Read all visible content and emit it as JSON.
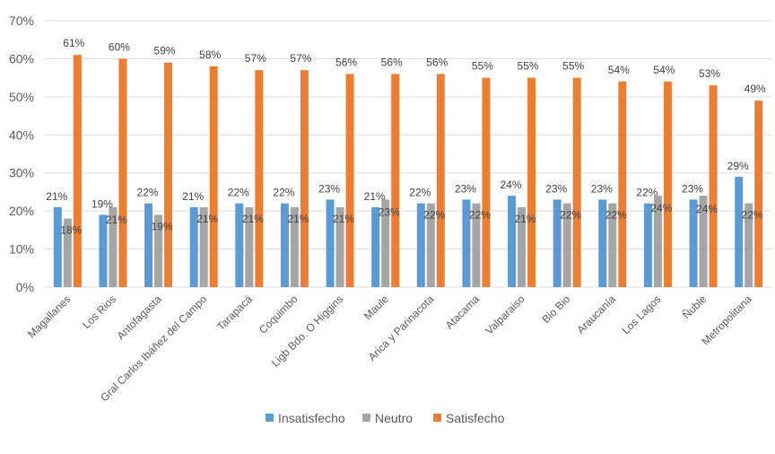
{
  "chart_data": {
    "type": "bar",
    "categories": [
      "Magallanes",
      "Los Rios",
      "Antofagasta",
      "Gral Carlos Ibáñez del Campo",
      "Tarapacá",
      "Coquimbo",
      "Ligb Bdo. O Higgins",
      "Maule",
      "Arica y Parinacota",
      "Atacama",
      "Valparaiso",
      "Bio Bio",
      "Araucanía",
      "Los Lagos",
      "Ñuble",
      "Metropolitana"
    ],
    "series": [
      {
        "name": "Insatisfecho",
        "color": "#5B9BD5",
        "values": [
          21,
          19,
          22,
          21,
          22,
          22,
          23,
          21,
          22,
          23,
          24,
          23,
          23,
          22,
          23,
          29
        ]
      },
      {
        "name": "Neutro",
        "color": "#A5A5A5",
        "values": [
          18,
          21,
          19,
          21,
          21,
          21,
          21,
          23,
          22,
          22,
          21,
          22,
          22,
          24,
          24,
          22
        ]
      },
      {
        "name": "Satisfecho",
        "color": "#ED7D31",
        "values": [
          61,
          60,
          59,
          58,
          57,
          57,
          56,
          56,
          56,
          55,
          55,
          55,
          54,
          54,
          53,
          49
        ]
      }
    ],
    "ylim": [
      0,
      70
    ],
    "yticks": [
      "0%",
      "10%",
      "20%",
      "30%",
      "40%",
      "50%",
      "60%",
      "70%"
    ],
    "value_suffix": "%",
    "grid": true,
    "legend_position": "bottom"
  }
}
